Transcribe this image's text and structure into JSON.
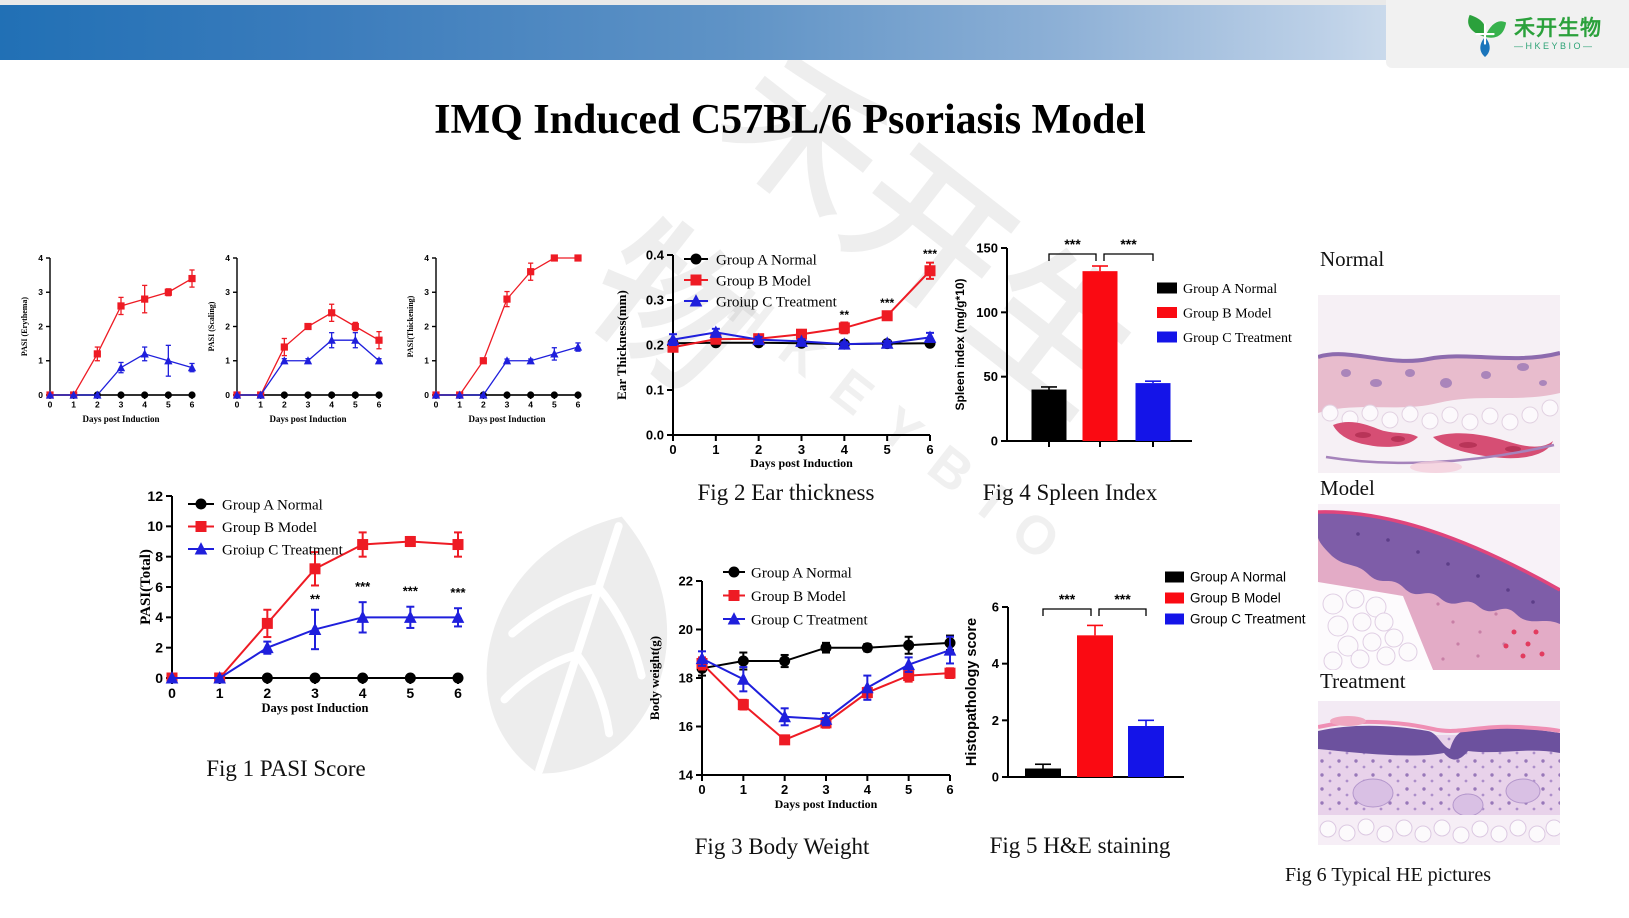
{
  "header": {
    "title": "IMQ Induced C57BL/6 Psoriasis Model",
    "logo_cn": "禾开生物",
    "logo_en": "—HKEYBIO—"
  },
  "watermark": {
    "text_cn": "禾开生物",
    "text_en": "HKEYBIO"
  },
  "captions": {
    "fig1": "Fig 1  PASI Score",
    "fig2": "Fig 2 Ear thickness",
    "fig3": "Fig 3 Body Weight",
    "fig4": "Fig 4 Spleen Index",
    "fig5": "Fig 5 H&E staining",
    "fig6": "Fig 6 Typical HE pictures"
  },
  "he_panels": [
    {
      "label": "Normal"
    },
    {
      "label": "Model"
    },
    {
      "label": "Treatment"
    }
  ],
  "chart_data": [
    {
      "id": "pasi_erythema",
      "type": "line",
      "title": "",
      "ylabel": "PASI (Erythema)",
      "xlabel": "Days post Induction",
      "x": [
        0,
        1,
        2,
        3,
        4,
        5,
        6
      ],
      "xlim": [
        0,
        6
      ],
      "ylim": [
        0,
        4
      ],
      "yticks": [
        0,
        1,
        2,
        3,
        4
      ],
      "ytick_labels": [
        "0",
        "1",
        "2",
        "3",
        "4"
      ],
      "legend": "none",
      "series": [
        {
          "name": "Group A Normal",
          "color": "#000000",
          "marker": "circle",
          "values": [
            0,
            0,
            0,
            0,
            0,
            0,
            0
          ],
          "err": [
            0,
            0,
            0,
            0,
            0,
            0,
            0
          ]
        },
        {
          "name": "Group B Model",
          "color": "#ee1b24",
          "marker": "square",
          "values": [
            0,
            0,
            1.2,
            2.6,
            2.8,
            3.0,
            3.4
          ],
          "err": [
            0,
            0,
            0.2,
            0.25,
            0.4,
            0.1,
            0.25
          ]
        },
        {
          "name": "Groiup C Treatment",
          "color": "#1f1fdc",
          "marker": "triangle",
          "values": [
            0,
            0,
            0,
            0.8,
            1.2,
            1.0,
            0.8
          ],
          "err": [
            0,
            0,
            0,
            0.15,
            0.2,
            0.45,
            0.12
          ]
        }
      ]
    },
    {
      "id": "pasi_scaling",
      "type": "line",
      "title": "",
      "ylabel": "PASI (Scaling)",
      "xlabel": "Days post Induction",
      "x": [
        0,
        1,
        2,
        3,
        4,
        5,
        6
      ],
      "xlim": [
        0,
        6
      ],
      "ylim": [
        0,
        4
      ],
      "yticks": [
        0,
        1,
        2,
        3,
        4
      ],
      "ytick_labels": [
        "0",
        "1",
        "2",
        "3",
        "4"
      ],
      "legend": "none",
      "series": [
        {
          "name": "Group A Normal",
          "color": "#000000",
          "marker": "circle",
          "values": [
            0,
            0,
            0,
            0,
            0,
            0,
            0
          ],
          "err": [
            0,
            0,
            0,
            0,
            0,
            0,
            0
          ]
        },
        {
          "name": "Group B Model",
          "color": "#ee1b24",
          "marker": "square",
          "values": [
            0,
            0,
            1.4,
            2.0,
            2.4,
            2.0,
            1.6
          ],
          "err": [
            0,
            0,
            0.25,
            0.08,
            0.25,
            0.12,
            0.25
          ]
        },
        {
          "name": "Groiup C Treatment",
          "color": "#1f1fdc",
          "marker": "triangle",
          "values": [
            0,
            0,
            1.0,
            1.0,
            1.6,
            1.6,
            1.0
          ],
          "err": [
            0,
            0,
            0.06,
            0.06,
            0.22,
            0.22,
            0.06
          ]
        }
      ]
    },
    {
      "id": "pasi_thickening",
      "type": "line",
      "title": "",
      "ylabel": "PASI(Thickening)",
      "xlabel": "Days post Induction",
      "x": [
        0,
        1,
        2,
        3,
        4,
        5,
        6
      ],
      "xlim": [
        0,
        6
      ],
      "ylim": [
        0,
        4
      ],
      "yticks": [
        0,
        1,
        2,
        3,
        4
      ],
      "ytick_labels": [
        "0",
        "1",
        "2",
        "3",
        "4"
      ],
      "legend": "none",
      "series": [
        {
          "name": "Group A Normal",
          "color": "#000000",
          "marker": "circle",
          "values": [
            0,
            0,
            0,
            0,
            0,
            0,
            0
          ],
          "err": [
            0,
            0,
            0,
            0,
            0,
            0,
            0
          ]
        },
        {
          "name": "Group B Model",
          "color": "#ee1b24",
          "marker": "square",
          "values": [
            0,
            0,
            1.0,
            2.8,
            3.6,
            4.0,
            4.0
          ],
          "err": [
            0,
            0,
            0.06,
            0.22,
            0.25,
            0.05,
            0
          ]
        },
        {
          "name": "Groiup C Treatment",
          "color": "#1f1fdc",
          "marker": "triangle",
          "values": [
            0,
            0,
            0,
            1.0,
            1.0,
            1.2,
            1.4
          ],
          "err": [
            0,
            0,
            0,
            0.05,
            0.05,
            0.18,
            0.12
          ]
        }
      ]
    },
    {
      "id": "pasi_total",
      "type": "line",
      "title": "Fig 1 PASI Score",
      "ylabel": "PASI(Total)",
      "xlabel": "Days post Induction",
      "x": [
        0,
        1,
        2,
        3,
        4,
        5,
        6
      ],
      "xlim": [
        0,
        6
      ],
      "ylim": [
        0,
        12
      ],
      "yticks": [
        0,
        2,
        4,
        6,
        8,
        10,
        12
      ],
      "ytick_labels": [
        "0",
        "2",
        "4",
        "6",
        "8",
        "10",
        "12"
      ],
      "legend": "inside-top-left",
      "series": [
        {
          "name": "Group A Normal",
          "color": "#000000",
          "marker": "circle",
          "values": [
            0,
            0,
            0,
            0,
            0,
            0,
            0
          ],
          "err": [
            0,
            0,
            0,
            0,
            0,
            0,
            0
          ]
        },
        {
          "name": "Group B Model",
          "color": "#ee1b24",
          "marker": "square",
          "values": [
            0,
            0,
            3.6,
            7.2,
            8.8,
            9.0,
            8.8
          ],
          "err": [
            0,
            0,
            0.9,
            1.1,
            0.8,
            0.3,
            0.8
          ]
        },
        {
          "name": "Groiup C Treatment",
          "color": "#1f1fdc",
          "marker": "triangle",
          "values": [
            0,
            0,
            2.0,
            3.2,
            4.0,
            4.0,
            4.0
          ],
          "err": [
            0,
            0,
            0.4,
            1.3,
            1.0,
            0.7,
            0.6
          ]
        }
      ],
      "significance": [
        {
          "x": 3,
          "y": 4.9,
          "label": "**"
        },
        {
          "x": 4,
          "y": 5.75,
          "label": "***"
        },
        {
          "x": 5,
          "y": 5.45,
          "label": "***"
        },
        {
          "x": 6,
          "y": 5.35,
          "label": "***"
        }
      ]
    },
    {
      "id": "ear_thickness",
      "type": "line",
      "title": "Fig 2 Ear thickness",
      "ylabel": "Ear Thickness(mm)",
      "xlabel": "Days post Induction",
      "x": [
        0,
        1,
        2,
        3,
        4,
        5,
        6
      ],
      "xlim": [
        0,
        6
      ],
      "ylim": [
        0,
        0.4
      ],
      "yticks": [
        0,
        0.1,
        0.2,
        0.3,
        0.4
      ],
      "ytick_labels": [
        "0.0",
        "0.1",
        "0.2",
        "0.3",
        "0.4"
      ],
      "legend": "inside-top-left",
      "series": [
        {
          "name": "Group A Normal",
          "color": "#000000",
          "marker": "circle",
          "values": [
            0.204,
            0.205,
            0.205,
            0.204,
            0.202,
            0.203,
            0.204
          ],
          "err": [
            0.006,
            0.004,
            0.004,
            0.004,
            0.004,
            0.004,
            0.004
          ]
        },
        {
          "name": "Group B Model",
          "color": "#ee1b24",
          "marker": "square",
          "values": [
            0.195,
            0.213,
            0.214,
            0.224,
            0.238,
            0.265,
            0.365
          ],
          "err": [
            0.008,
            0.01,
            0.005,
            0.007,
            0.012,
            0.008,
            0.018
          ]
        },
        {
          "name": "Groiup C Treatment",
          "color": "#1f1fdc",
          "marker": "triangle",
          "values": [
            0.212,
            0.228,
            0.212,
            0.208,
            0.202,
            0.204,
            0.217
          ],
          "err": [
            0.012,
            0.008,
            0.006,
            0.005,
            0.004,
            0.005,
            0.01
          ]
        }
      ],
      "significance": [
        {
          "x": 4,
          "y": 0.258,
          "label": "**"
        },
        {
          "x": 5,
          "y": 0.285,
          "label": "***"
        },
        {
          "x": 6,
          "y": 0.393,
          "label": "***"
        }
      ]
    },
    {
      "id": "body_weight",
      "type": "line",
      "title": "Fig 3 Body Weight",
      "ylabel": "Body weight(g)",
      "xlabel": "Days post Induction",
      "x": [
        0,
        1,
        2,
        3,
        4,
        5,
        6
      ],
      "xlim": [
        0,
        6
      ],
      "ylim": [
        14,
        22
      ],
      "yticks": [
        14,
        16,
        18,
        20,
        22
      ],
      "ytick_labels": [
        "14",
        "16",
        "18",
        "20",
        "22"
      ],
      "legend": "inside-top-left",
      "series": [
        {
          "name": "Group A Normal",
          "color": "#000000",
          "marker": "circle",
          "values": [
            18.4,
            18.7,
            18.7,
            19.25,
            19.25,
            19.35,
            19.45
          ],
          "err": [
            0.3,
            0.35,
            0.25,
            0.2,
            0.15,
            0.35,
            0.3
          ]
        },
        {
          "name": "Group B Model",
          "color": "#ee1b24",
          "marker": "square",
          "values": [
            18.6,
            16.9,
            15.45,
            16.15,
            17.4,
            18.1,
            18.2
          ],
          "err": [
            0.25,
            0.2,
            0.12,
            0.2,
            0.2,
            0.25,
            0.2
          ]
        },
        {
          "name": "Group C Treatment",
          "color": "#1f1fdc",
          "marker": "triangle",
          "values": [
            18.8,
            17.95,
            16.4,
            16.3,
            17.6,
            18.55,
            19.15
          ],
          "err": [
            0.3,
            0.5,
            0.35,
            0.25,
            0.5,
            0.3,
            0.55
          ]
        }
      ]
    },
    {
      "id": "spleen_index",
      "type": "bar",
      "title": "Fig 4 Spleen Index",
      "ylabel": "Spleen index (mg/g*10)",
      "categories": [
        "Group A Normal",
        "Group B Model",
        "Group C Treatment"
      ],
      "values": [
        40,
        132,
        45
      ],
      "err": [
        2,
        4,
        1.5
      ],
      "bar_colors": [
        "#000000",
        "#fa0a12",
        "#1414e8"
      ],
      "ylim": [
        0,
        150
      ],
      "yticks": [
        0,
        50,
        100,
        150
      ],
      "ytick_labels": [
        "0",
        "50",
        "100",
        "150"
      ],
      "legend": "right",
      "legend_font": "serif",
      "significance": [
        {
          "between": [
            0,
            1
          ],
          "label": "***"
        },
        {
          "between": [
            1,
            2
          ],
          "label": "***"
        }
      ]
    },
    {
      "id": "histopathology",
      "type": "bar",
      "title": "Fig 5 H&E staining",
      "ylabel": "Histopathology score",
      "categories": [
        "Group A Normal",
        "Group B Model",
        "Group C Treatment"
      ],
      "values": [
        0.3,
        5.0,
        1.8
      ],
      "err": [
        0.15,
        0.35,
        0.2
      ],
      "bar_colors": [
        "#000000",
        "#fa0a12",
        "#1414e8"
      ],
      "ylim": [
        0,
        6
      ],
      "yticks": [
        0,
        2,
        4,
        6
      ],
      "ytick_labels": [
        "0",
        "2",
        "4",
        "6"
      ],
      "legend": "right",
      "legend_font": "sans",
      "significance": [
        {
          "between": [
            0,
            1
          ],
          "label": "***"
        },
        {
          "between": [
            1,
            2
          ],
          "label": "***"
        }
      ]
    }
  ]
}
